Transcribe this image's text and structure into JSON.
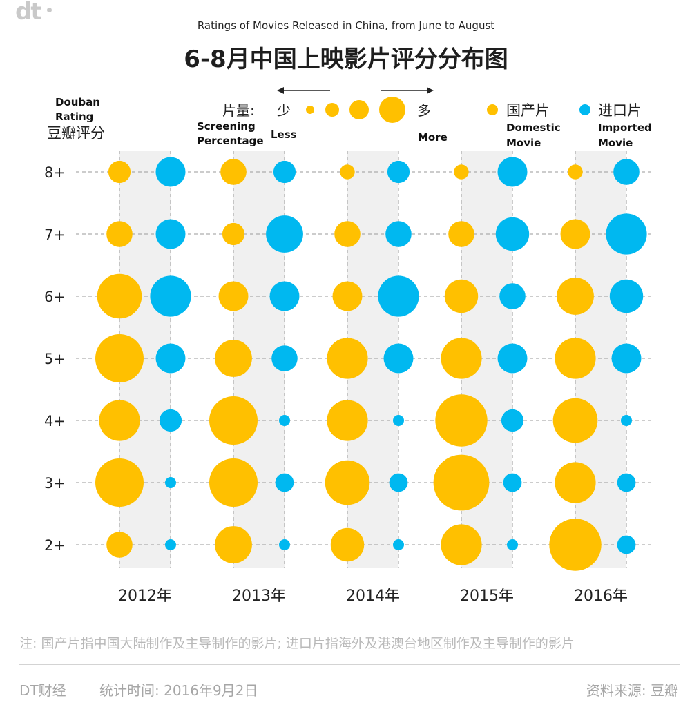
{
  "brand_logo": "dt",
  "chart_data": {
    "type": "scatter",
    "subtitle": "Ratings of Movies Released in China, from June to August",
    "title": "6-8月中国上映影片评分分布图",
    "y_axis_label_en": "Douban Rating",
    "y_axis_label_cn": "豆瓣评分",
    "y_categories": [
      "8+",
      "7+",
      "6+",
      "5+",
      "4+",
      "3+",
      "2+"
    ],
    "x_categories": [
      "2012年",
      "2013年",
      "2014年",
      "2015年",
      "2016年"
    ],
    "size_legend": {
      "label_cn": "片量:",
      "label_en": "Screening Percentage",
      "less_cn": "少",
      "less_en": "Less",
      "more_cn": "多",
      "more_en": "More"
    },
    "series": [
      {
        "name": "国产片",
        "name_en": "Domestic Movie",
        "color": "#FFC000",
        "relative_size": [
          [
            3,
            4,
            1,
            1,
            1
          ],
          [
            4,
            3,
            4,
            4,
            5
          ],
          [
            9,
            5,
            5,
            6,
            7
          ],
          [
            10,
            7,
            8,
            8,
            8
          ],
          [
            8,
            10,
            8,
            11,
            9
          ],
          [
            10,
            10,
            9,
            12,
            8
          ],
          [
            4,
            7,
            6,
            8,
            11
          ]
        ]
      },
      {
        "name": "进口片",
        "name_en": "Imported Movie",
        "color": "#00B8F0",
        "relative_size": [
          [
            5,
            3,
            3,
            5,
            4
          ],
          [
            5,
            7,
            4,
            6,
            8
          ],
          [
            8,
            5,
            8,
            4,
            6
          ],
          [
            5,
            4,
            5,
            5,
            5
          ],
          [
            3,
            0,
            0,
            3,
            0
          ],
          [
            0,
            2,
            2,
            2,
            2
          ],
          [
            0,
            0,
            0,
            0,
            2
          ]
        ]
      }
    ]
  },
  "footer": {
    "note": "注: 国产片指中国大陆制作及主导制作的影片; 进口片指海外及港澳台地区制作及主导制作的影片",
    "brand": "DT财经",
    "stat_time": "统计时间: 2016年9月2日",
    "source": "资料来源: 豆瓣"
  }
}
